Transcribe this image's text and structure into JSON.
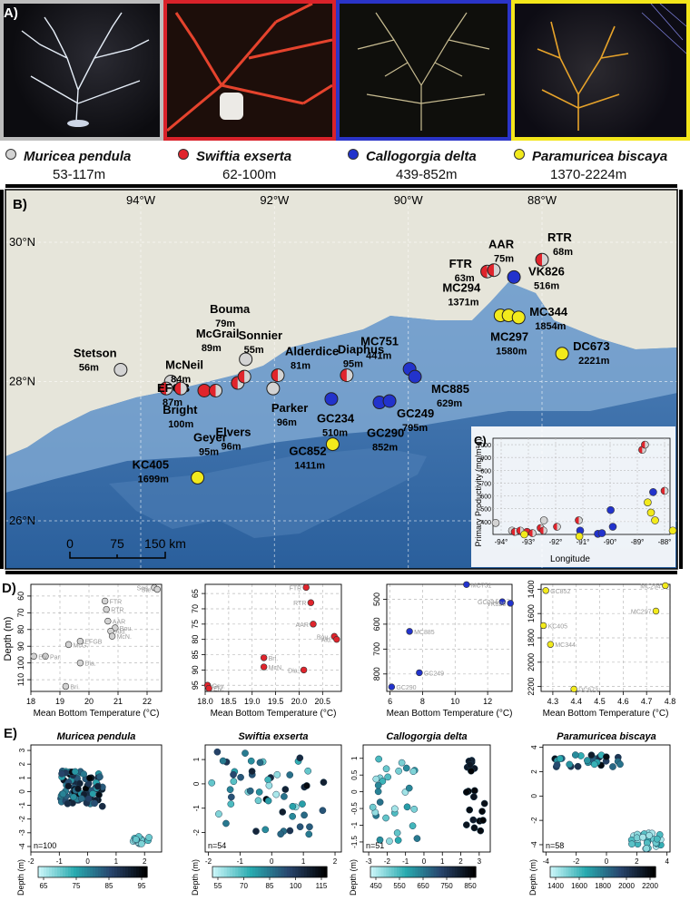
{
  "panelA": {
    "letter": "A)",
    "species": [
      {
        "name": "Muricea pendula",
        "depth": "53-117m",
        "color": "#d3d3d3",
        "border": "#bdbdbd"
      },
      {
        "name": "Swiftia exserta",
        "depth": "62-100m",
        "color": "#e0242c",
        "border": "#d9222a"
      },
      {
        "name": "Callogorgia delta",
        "depth": "439-852m",
        "color": "#2233cc",
        "border": "#2a34c8"
      },
      {
        "name": "Paramuricea biscaya",
        "depth": "1370-2224m",
        "color": "#f2ea1c",
        "border": "#f3e61a"
      }
    ]
  },
  "panelB": {
    "letter": "B)",
    "lon_labels": [
      "94°W",
      "92°W",
      "90°W",
      "88°W"
    ],
    "lat_labels": [
      "30°N",
      "28°N",
      "26°N"
    ],
    "scale_labels": [
      "0",
      "75",
      "150 km"
    ],
    "sites": [
      {
        "name": "Stetson",
        "depth": "56m",
        "lon": -94.3,
        "lat": 28.17,
        "type": "mp"
      },
      {
        "name": "McNeil",
        "depth": "84m",
        "lon": -93.55,
        "lat": 28.0,
        "type": "mp"
      },
      {
        "name": "EFGB",
        "depth": "87m",
        "lon": -93.62,
        "lat": 27.9,
        "type": "split"
      },
      {
        "name": "Bright",
        "depth": "100m",
        "lon": -93.4,
        "lat": 27.9,
        "type": "split"
      },
      {
        "name": "Geyer",
        "depth": "95m",
        "lon": -93.05,
        "lat": 27.87,
        "type": "se"
      },
      {
        "name": "Elvers",
        "depth": "96m",
        "lon": -92.88,
        "lat": 27.87,
        "type": "split"
      },
      {
        "name": "McGrail",
        "depth": "89m",
        "lon": -92.55,
        "lat": 27.98,
        "type": "split"
      },
      {
        "name": "Bouma",
        "depth": "79m",
        "lon": -92.45,
        "lat": 28.07,
        "type": "split"
      },
      {
        "name": "Sonnier",
        "depth": "55m",
        "lon": -92.43,
        "lat": 28.32,
        "type": "mp"
      },
      {
        "name": "Alderdice",
        "depth": "81m",
        "lon": -91.95,
        "lat": 28.09,
        "type": "split"
      },
      {
        "name": "Parker",
        "depth": "96m",
        "lon": -92.02,
        "lat": 27.9,
        "type": "mp"
      },
      {
        "name": "Diaphus",
        "depth": "95m",
        "lon": -90.92,
        "lat": 28.09,
        "type": "split"
      },
      {
        "name": "GC234",
        "depth": "510m",
        "lon": -91.15,
        "lat": 27.75,
        "type": "cd"
      },
      {
        "name": "GC852",
        "depth": "1411m",
        "lon": -91.13,
        "lat": 27.1,
        "type": "pb"
      },
      {
        "name": "GC290",
        "depth": "852m",
        "lon": -90.43,
        "lat": 27.7,
        "type": "cd"
      },
      {
        "name": "GC249",
        "depth": "795m",
        "lon": -90.28,
        "lat": 27.72,
        "type": "cd"
      },
      {
        "name": "MC751",
        "depth": "441m",
        "lon": -89.98,
        "lat": 28.18,
        "type": "cd"
      },
      {
        "name": "MC885",
        "depth": "629m",
        "lon": -89.9,
        "lat": 28.07,
        "type": "cd"
      },
      {
        "name": "FTR",
        "depth": "63m",
        "lon": -88.82,
        "lat": 29.58,
        "type": "split"
      },
      {
        "name": "AAR",
        "depth": "75m",
        "lon": -88.72,
        "lat": 29.6,
        "type": "split"
      },
      {
        "name": "RTR",
        "depth": "68m",
        "lon": -88.0,
        "lat": 29.75,
        "type": "split"
      },
      {
        "name": "VK826",
        "depth": "516m",
        "lon": -88.42,
        "lat": 29.5,
        "type": "cd"
      },
      {
        "name": "MC294",
        "depth": "1371m",
        "lon": -88.62,
        "lat": 28.95,
        "type": "pb"
      },
      {
        "name": "MC297",
        "depth": "1580m",
        "lon": -88.5,
        "lat": 28.95,
        "type": "pb"
      },
      {
        "name": "MC344",
        "depth": "1854m",
        "lon": -88.35,
        "lat": 28.92,
        "type": "pb"
      },
      {
        "name": "DC673",
        "depth": "2221m",
        "lon": -87.7,
        "lat": 28.4,
        "type": "pb"
      },
      {
        "name": "KC405",
        "depth": "1699m",
        "lon": -93.15,
        "lat": 26.62,
        "type": "pb"
      }
    ]
  },
  "panelC": {
    "letter": "C)",
    "ylabel": "Primary Productivity (mg/m²d)",
    "xlabel": "Longitude",
    "x_ticks": [
      "-94°",
      "-93°",
      "-92°",
      "-91°",
      "-90°",
      "-89°",
      "-88°"
    ],
    "y_ticks": [
      "400",
      "500",
      "600",
      "700",
      "800",
      "900",
      "1000"
    ]
  },
  "panelD": {
    "letter": "D)",
    "ylabel": "Depth (m)",
    "xlabel": "Mean Bottom Temperature (°C)"
  },
  "panelE": {
    "letter": "E)",
    "depth_label": "Depth (m)"
  },
  "chart_data": [
    {
      "type": "scatter",
      "name": "D1",
      "species": "Muricea pendula",
      "xlim": [
        18,
        22.5
      ],
      "ylim": [
        117,
        53
      ],
      "x_ticks": [
        18,
        19,
        20,
        21,
        22
      ],
      "y_ticks": [
        60,
        70,
        80,
        90,
        100,
        110
      ],
      "points": [
        {
          "label": "Son.",
          "x": 22.25,
          "y": 55
        },
        {
          "label": "Ste.",
          "x": 22.35,
          "y": 56
        },
        {
          "label": "FTR",
          "x": 20.55,
          "y": 63
        },
        {
          "label": "RTR",
          "x": 20.6,
          "y": 68
        },
        {
          "label": "AAR",
          "x": 20.65,
          "y": 75
        },
        {
          "label": "Bou.",
          "x": 20.9,
          "y": 79
        },
        {
          "label": "Ald.",
          "x": 20.75,
          "y": 81
        },
        {
          "label": "McN.",
          "x": 20.8,
          "y": 84
        },
        {
          "label": "EFGB",
          "x": 19.7,
          "y": 87
        },
        {
          "label": "McG.",
          "x": 19.3,
          "y": 89
        },
        {
          "label": "Par.",
          "x": 18.5,
          "y": 96
        },
        {
          "label": "Elv.",
          "x": 18.1,
          "y": 96
        },
        {
          "label": "Dia.",
          "x": 19.7,
          "y": 100
        },
        {
          "label": "Bri.",
          "x": 19.2,
          "y": 114
        }
      ]
    },
    {
      "type": "scatter",
      "name": "D2",
      "species": "Swiftia exserta",
      "xlim": [
        18,
        20.9
      ],
      "ylim": [
        97,
        62
      ],
      "x_ticks": [
        18.0,
        18.5,
        19.0,
        19.5,
        20.0,
        20.5
      ],
      "y_ticks": [
        65,
        70,
        75,
        80,
        85,
        90,
        95
      ],
      "points": [
        {
          "label": "FTR",
          "x": 20.15,
          "y": 63
        },
        {
          "label": "RTR",
          "x": 20.25,
          "y": 68
        },
        {
          "label": "AAR",
          "x": 20.3,
          "y": 75
        },
        {
          "label": "Bou.",
          "x": 20.75,
          "y": 79
        },
        {
          "label": "Ald.",
          "x": 20.8,
          "y": 80
        },
        {
          "label": "Bri.",
          "x": 19.25,
          "y": 86
        },
        {
          "label": "McN.",
          "x": 19.25,
          "y": 89
        },
        {
          "label": "Dia.",
          "x": 20.1,
          "y": 90
        },
        {
          "label": "Gey.",
          "x": 18.05,
          "y": 95
        },
        {
          "label": "Elv.",
          "x": 18.08,
          "y": 96
        }
      ]
    },
    {
      "type": "scatter",
      "name": "D3",
      "species": "Callogorgia delta",
      "xlim": [
        5.8,
        13.5
      ],
      "ylim": [
        870,
        440
      ],
      "x_ticks": [
        6,
        8,
        10,
        12
      ],
      "y_ticks": [
        500,
        600,
        700,
        800
      ],
      "points": [
        {
          "label": "MC751",
          "x": 10.7,
          "y": 441
        },
        {
          "label": "GC234",
          "x": 12.9,
          "y": 510
        },
        {
          "label": "VK826",
          "x": 13.4,
          "y": 516
        },
        {
          "label": "MC885",
          "x": 7.2,
          "y": 629
        },
        {
          "label": "GC249",
          "x": 7.8,
          "y": 795
        },
        {
          "label": "GC290",
          "x": 6.1,
          "y": 852
        }
      ]
    },
    {
      "type": "scatter",
      "name": "D4",
      "species": "Paramuricea biscaya",
      "xlim": [
        4.25,
        4.8
      ],
      "ylim": [
        2240,
        1360
      ],
      "x_ticks": [
        4.3,
        4.4,
        4.5,
        4.6,
        4.7,
        4.8
      ],
      "y_ticks": [
        1400,
        1600,
        1800,
        2000,
        2200
      ],
      "points": [
        {
          "label": "GC852",
          "x": 4.27,
          "y": 1411
        },
        {
          "label": "MC294",
          "x": 4.78,
          "y": 1371
        },
        {
          "label": "MC297",
          "x": 4.74,
          "y": 1580
        },
        {
          "label": "KC405",
          "x": 4.26,
          "y": 1699
        },
        {
          "label": "MC344",
          "x": 4.29,
          "y": 1854
        },
        {
          "label": "DC673",
          "x": 4.39,
          "y": 2221
        }
      ]
    }
  ],
  "panelE_plots": [
    {
      "title": "Muricea pendula",
      "n": "n=100",
      "xlim": [
        -2,
        2.6
      ],
      "ylim": [
        -4.4,
        3.4
      ],
      "x_ticks": [
        -2,
        -1,
        0,
        1,
        2
      ],
      "y_ticks": [
        -4,
        -3,
        -2,
        -1,
        0,
        1,
        2,
        3
      ],
      "cbar_ticks": [
        "65",
        "75",
        "85",
        "95"
      ]
    },
    {
      "title": "Swiftia exserta",
      "n": "n=54",
      "xlim": [
        -2.1,
        2.2
      ],
      "ylim": [
        -2.8,
        1.6
      ],
      "x_ticks": [
        -2,
        -1,
        0,
        1,
        2
      ],
      "y_ticks": [
        -2,
        -1,
        0,
        1
      ],
      "cbar_ticks": [
        "55",
        "70",
        "85",
        "100",
        "115"
      ]
    },
    {
      "title": "Callogorgia delta",
      "n": "n=51",
      "xlim": [
        -3.3,
        3.6
      ],
      "ylim": [
        -1.8,
        1.4
      ],
      "x_ticks": [
        -3,
        -2,
        -1,
        0,
        1,
        2,
        3
      ],
      "y_ticks": [
        -1.5,
        -1,
        -0.5,
        0,
        0.5,
        1
      ],
      "cbar_ticks": [
        "450",
        "550",
        "650",
        "750",
        "850"
      ]
    },
    {
      "title": "Paramuricea biscaya",
      "n": "n=58",
      "xlim": [
        -4.2,
        4.2
      ],
      "ylim": [
        -4.6,
        4.2
      ],
      "x_ticks": [
        -4,
        -2,
        0,
        2,
        4
      ],
      "y_ticks": [
        -4,
        -2,
        0,
        2,
        4
      ],
      "cbar_ticks": [
        "1400",
        "1600",
        "1800",
        "2000",
        "2200"
      ]
    }
  ]
}
